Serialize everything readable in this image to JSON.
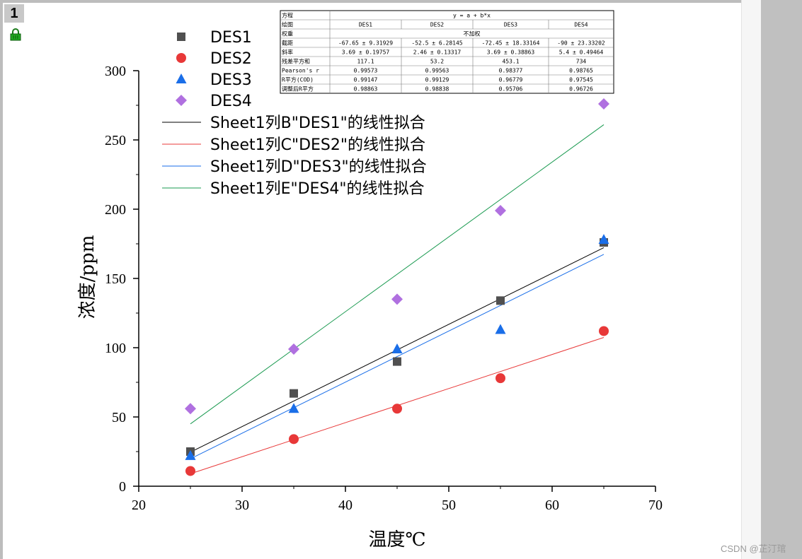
{
  "page_badge": "1",
  "watermark": "CSDN @芷汀琯",
  "icons": {
    "lock": "lock-icon"
  },
  "colors": {
    "DES1": "#505050",
    "DES2": "#e83838",
    "DES3": "#1a6ee8",
    "DES4": "#b070e0",
    "fit1": "#000000",
    "fit2": "#e83838",
    "fit3": "#1a6ee8",
    "fit4": "#1a9a50"
  },
  "chart_data": {
    "type": "scatter",
    "xlabel": "温度℃",
    "ylabel": "浓度/ppm",
    "xlim": [
      20,
      70
    ],
    "ylim": [
      0,
      300
    ],
    "xticks": [
      20,
      30,
      40,
      50,
      60,
      70
    ],
    "yticks": [
      0,
      50,
      100,
      150,
      200,
      250,
      300
    ],
    "x": [
      25,
      35,
      45,
      55,
      65
    ],
    "series": [
      {
        "name": "DES1",
        "marker": "square",
        "values": [
          25,
          67,
          90,
          134,
          176
        ]
      },
      {
        "name": "DES2",
        "marker": "circle",
        "values": [
          11,
          34,
          56,
          78,
          112
        ]
      },
      {
        "name": "DES3",
        "marker": "triangle",
        "values": [
          22,
          56,
          99,
          113,
          178
        ]
      },
      {
        "name": "DES4",
        "marker": "diamond",
        "values": [
          56,
          99,
          135,
          199,
          276
        ]
      }
    ],
    "fits": [
      {
        "name": "Sheet1列B\"DES1\"的线性拟合",
        "intercept": -67.65,
        "slope": 3.69
      },
      {
        "name": "Sheet1列C\"DES2\"的线性拟合",
        "intercept": -52.5,
        "slope": 2.46
      },
      {
        "name": "Sheet1列D\"DES3\"的线性拟合",
        "intercept": -72.45,
        "slope": 3.69
      },
      {
        "name": "Sheet1列E\"DES4\"的线性拟合",
        "intercept": -90,
        "slope": 5.4
      }
    ],
    "legend_position": "top-left",
    "grid": false,
    "stats_table": {
      "rows": [
        [
          "方程",
          "y = a + b*x"
        ],
        [
          "绘图",
          "DES1",
          "DES2",
          "DES3",
          "DES4"
        ],
        [
          "权重",
          "不加权"
        ],
        [
          "截距",
          "-67.65 ± 9.31929",
          "-52.5 ± 6.28145",
          "-72.45 ± 18.33164",
          "-90 ± 23.33202"
        ],
        [
          "斜率",
          "3.69 ± 0.19757",
          "2.46 ± 0.13317",
          "3.69 ± 0.38863",
          "5.4 ± 0.49464"
        ],
        [
          "残差平方和",
          "117.1",
          "53.2",
          "453.1",
          "734"
        ],
        [
          "Pearson's r",
          "0.99573",
          "0.99563",
          "0.98377",
          "0.98765"
        ],
        [
          "R平方(COD)",
          "0.99147",
          "0.99129",
          "0.96779",
          "0.97545"
        ],
        [
          "调整后R平方",
          "0.98863",
          "0.98838",
          "0.95706",
          "0.96726"
        ]
      ]
    }
  }
}
